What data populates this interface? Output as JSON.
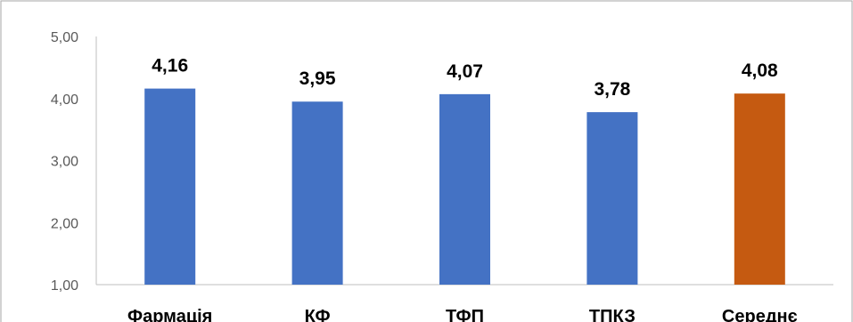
{
  "chart_data": {
    "type": "bar",
    "categories": [
      "Фармація",
      "КФ",
      "ТФП",
      "ТПКЗ",
      "Середнє"
    ],
    "values": [
      4.16,
      3.95,
      4.07,
      3.78,
      4.08
    ],
    "value_labels": [
      "4,16",
      "3,95",
      "4,07",
      "3,78",
      "4,08"
    ],
    "yticks": [
      "1,00",
      "2,00",
      "3,00",
      "4,00",
      "5,00"
    ],
    "ylim": [
      1,
      5
    ],
    "grid": false,
    "legend": "none",
    "colors": [
      "#4472C4",
      "#4472C4",
      "#4472C4",
      "#4472C4",
      "#C55A11"
    ]
  }
}
